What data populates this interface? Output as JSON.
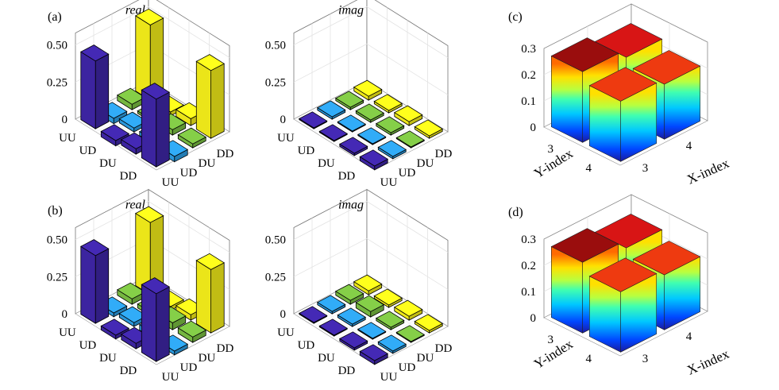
{
  "panel_labels": {
    "a": "(a)",
    "b": "(b)",
    "c": "(c)",
    "d": "(d)"
  },
  "colors": {
    "UU": "#3f26a8",
    "UD": "#2d9fe6",
    "DU": "#7bc043",
    "DD": "#f7f11a"
  },
  "chart_data": [
    {
      "type": "bar3d",
      "panel": "(a)",
      "title": "real",
      "row_labels": [
        "UU",
        "UD",
        "DU",
        "DD"
      ],
      "col_labels": [
        "UU",
        "UD",
        "DU",
        "DD"
      ],
      "zticks": [
        "0",
        "0.25",
        "0.50"
      ],
      "zlim": [
        0,
        0.5
      ],
      "values": [
        [
          0.45,
          -0.03,
          0.03,
          0.5
        ],
        [
          -0.03,
          0.02,
          0.01,
          -0.02
        ],
        [
          0.03,
          0.02,
          0.03,
          0.04
        ],
        [
          0.45,
          -0.03,
          0.02,
          0.45
        ]
      ]
    },
    {
      "type": "bar3d",
      "panel": "(a)",
      "title": "imag",
      "row_labels": [
        "UU",
        "UD",
        "DU",
        "DD"
      ],
      "col_labels": [
        "UU",
        "UD",
        "DU",
        "DD"
      ],
      "zticks": [
        "0",
        "0.25",
        "0.50"
      ],
      "zlim": [
        0,
        0.5
      ],
      "values": [
        [
          0.0,
          0.01,
          0.01,
          0.02
        ],
        [
          0.0,
          0.0,
          0.01,
          0.01
        ],
        [
          -0.01,
          0.0,
          0.01,
          0.02
        ],
        [
          -0.02,
          -0.01,
          0.0,
          0.01
        ]
      ]
    },
    {
      "type": "bar3d",
      "panel": "(c)",
      "title": "",
      "xlabel": "X-index",
      "ylabel": "Y-index",
      "xticks": [
        "3",
        "4"
      ],
      "yticks": [
        "3",
        "4"
      ],
      "zticks": [
        "0",
        "0.1",
        "0.2",
        "0.3"
      ],
      "zlim": [
        0,
        0.3
      ],
      "values": [
        [
          0.27,
          0.24
        ],
        [
          0.23,
          0.21
        ]
      ]
    },
    {
      "type": "bar3d",
      "panel": "(b)",
      "title": "real",
      "row_labels": [
        "UU",
        "UD",
        "DU",
        "DD"
      ],
      "col_labels": [
        "UU",
        "UD",
        "DU",
        "DD"
      ],
      "zticks": [
        "0",
        "0.25",
        "0.50"
      ],
      "zlim": [
        0,
        0.5
      ],
      "values": [
        [
          0.45,
          -0.02,
          0.03,
          0.48
        ],
        [
          -0.02,
          0.02,
          0.02,
          -0.02
        ],
        [
          0.03,
          0.03,
          0.04,
          0.03
        ],
        [
          0.45,
          -0.02,
          0.03,
          0.42
        ]
      ]
    },
    {
      "type": "bar3d",
      "panel": "(b)",
      "title": "imag",
      "row_labels": [
        "UU",
        "UD",
        "DU",
        "DD"
      ],
      "col_labels": [
        "UU",
        "UD",
        "DU",
        "DD"
      ],
      "zticks": [
        "0",
        "0.25",
        "0.50"
      ],
      "zlim": [
        0,
        0.5
      ],
      "values": [
        [
          0.0,
          0.01,
          0.02,
          0.02
        ],
        [
          0.0,
          0.01,
          0.03,
          0.01
        ],
        [
          -0.01,
          0.0,
          0.01,
          0.02
        ],
        [
          -0.02,
          -0.01,
          0.0,
          0.01
        ]
      ]
    },
    {
      "type": "bar3d",
      "panel": "(d)",
      "title": "",
      "xlabel": "X-index",
      "ylabel": "Y-index",
      "xticks": [
        "3",
        "4"
      ],
      "yticks": [
        "3",
        "4"
      ],
      "zticks": [
        "0",
        "0.1",
        "0.2",
        "0.3"
      ],
      "zlim": [
        0,
        0.3
      ],
      "values": [
        [
          0.27,
          0.24
        ],
        [
          0.23,
          0.21
        ]
      ]
    }
  ]
}
